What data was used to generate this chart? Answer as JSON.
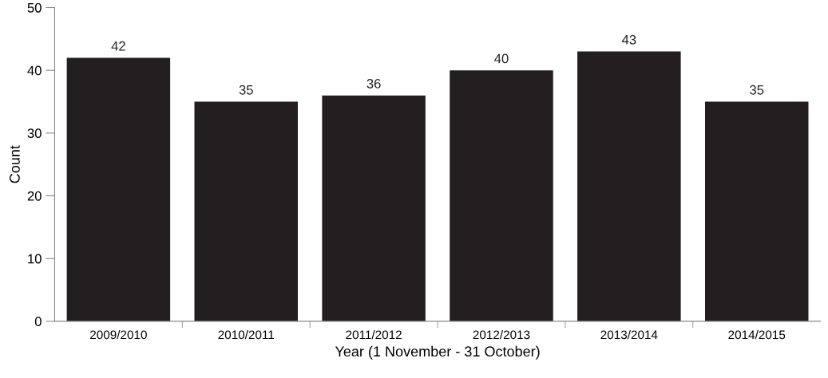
{
  "chart_data": {
    "type": "bar",
    "xlabel": "Year (1 November - 31 October)",
    "ylabel": "Count",
    "categories": [
      "2009/2010",
      "2010/2011",
      "2011/2012",
      "2012/2013",
      "2013/2014",
      "2014/2015"
    ],
    "values": [
      42,
      35,
      36,
      40,
      43,
      35
    ],
    "color": "#231f20",
    "ylim": [
      0,
      50
    ],
    "yticks": [
      0,
      10,
      20,
      30,
      40,
      50
    ],
    "data_labels": true,
    "grid": false,
    "legend": false
  }
}
